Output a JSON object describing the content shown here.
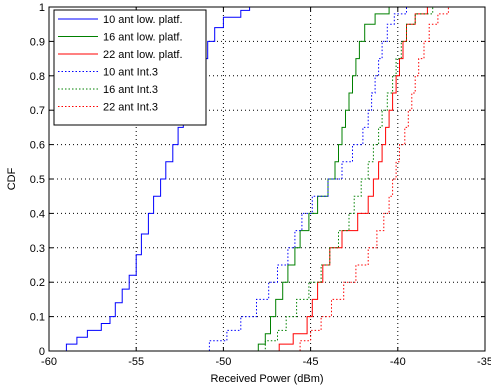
{
  "chart_data": {
    "type": "line",
    "xlabel": "Received Power (dBm)",
    "ylabel": "CDF",
    "xlim": [
      -60,
      -35
    ],
    "ylim": [
      0,
      1
    ],
    "xticks": [
      -60,
      -55,
      -50,
      -45,
      -40,
      -35
    ],
    "xtick_labels": [
      "-60",
      "-55",
      "-50",
      "-45",
      "-40",
      "-35"
    ],
    "yticks": [
      0,
      0.1,
      0.2,
      0.3,
      0.4,
      0.5,
      0.6,
      0.7,
      0.8,
      0.9,
      1
    ],
    "ytick_labels": [
      "0",
      "0.1",
      "0.2",
      "0.3",
      "0.4",
      "0.5",
      "0.6",
      "0.7",
      "0.8",
      "0.9",
      "1"
    ],
    "grid": true,
    "legend_position": "top-left",
    "series": [
      {
        "name": "10 ant low. platf.",
        "color": "#0000ff",
        "style": "solid",
        "points": [
          [
            -59.3,
            0
          ],
          [
            -59.0,
            0.02
          ],
          [
            -58.4,
            0.04
          ],
          [
            -57.8,
            0.06
          ],
          [
            -57.0,
            0.08
          ],
          [
            -56.5,
            0.1
          ],
          [
            -56.2,
            0.14
          ],
          [
            -55.8,
            0.18
          ],
          [
            -55.4,
            0.22
          ],
          [
            -55.0,
            0.28
          ],
          [
            -54.7,
            0.34
          ],
          [
            -54.3,
            0.4
          ],
          [
            -54.0,
            0.45
          ],
          [
            -53.6,
            0.5
          ],
          [
            -53.3,
            0.55
          ],
          [
            -52.9,
            0.6
          ],
          [
            -52.6,
            0.65
          ],
          [
            -52.3,
            0.7
          ],
          [
            -52.0,
            0.75
          ],
          [
            -51.7,
            0.8
          ],
          [
            -51.3,
            0.85
          ],
          [
            -50.9,
            0.9
          ],
          [
            -50.5,
            0.94
          ],
          [
            -50.0,
            0.97
          ],
          [
            -49.0,
            0.99
          ],
          [
            -48.5,
            1.0
          ]
        ]
      },
      {
        "name": "16 ant low. platf.",
        "color": "#008000",
        "style": "solid",
        "points": [
          [
            -48.5,
            0
          ],
          [
            -48.0,
            0.02
          ],
          [
            -47.6,
            0.05
          ],
          [
            -47.3,
            0.1
          ],
          [
            -47.0,
            0.15
          ],
          [
            -46.6,
            0.2
          ],
          [
            -46.3,
            0.25
          ],
          [
            -45.9,
            0.3
          ],
          [
            -45.6,
            0.35
          ],
          [
            -45.1,
            0.4
          ],
          [
            -44.6,
            0.45
          ],
          [
            -44.0,
            0.5
          ],
          [
            -43.6,
            0.55
          ],
          [
            -43.4,
            0.6
          ],
          [
            -43.2,
            0.65
          ],
          [
            -43.0,
            0.7
          ],
          [
            -42.8,
            0.75
          ],
          [
            -42.6,
            0.8
          ],
          [
            -42.4,
            0.85
          ],
          [
            -42.2,
            0.9
          ],
          [
            -41.9,
            0.95
          ],
          [
            -41.3,
            0.98
          ],
          [
            -40.5,
            1.0
          ]
        ]
      },
      {
        "name": "22 ant low. platf.",
        "color": "#ff0000",
        "style": "solid",
        "points": [
          [
            -47.5,
            0
          ],
          [
            -46.8,
            0.02
          ],
          [
            -46.0,
            0.05
          ],
          [
            -45.2,
            0.1
          ],
          [
            -44.9,
            0.15
          ],
          [
            -44.6,
            0.2
          ],
          [
            -44.3,
            0.25
          ],
          [
            -43.9,
            0.3
          ],
          [
            -43.2,
            0.35
          ],
          [
            -42.3,
            0.4
          ],
          [
            -41.7,
            0.45
          ],
          [
            -41.4,
            0.5
          ],
          [
            -41.1,
            0.55
          ],
          [
            -40.9,
            0.6
          ],
          [
            -40.7,
            0.65
          ],
          [
            -40.5,
            0.7
          ],
          [
            -40.3,
            0.75
          ],
          [
            -40.1,
            0.8
          ],
          [
            -39.9,
            0.85
          ],
          [
            -39.7,
            0.9
          ],
          [
            -39.5,
            0.95
          ],
          [
            -39.0,
            0.98
          ],
          [
            -38.3,
            1.0
          ]
        ]
      },
      {
        "name": "10 ant Int.3",
        "color": "#0000ff",
        "style": "dotted",
        "points": [
          [
            -51.8,
            0
          ],
          [
            -50.8,
            0.03
          ],
          [
            -49.8,
            0.06
          ],
          [
            -49.0,
            0.1
          ],
          [
            -48.1,
            0.15
          ],
          [
            -47.4,
            0.2
          ],
          [
            -46.9,
            0.25
          ],
          [
            -46.3,
            0.3
          ],
          [
            -45.9,
            0.35
          ],
          [
            -45.5,
            0.4
          ],
          [
            -44.9,
            0.45
          ],
          [
            -44.0,
            0.5
          ],
          [
            -43.2,
            0.55
          ],
          [
            -42.6,
            0.6
          ],
          [
            -42.0,
            0.65
          ],
          [
            -41.7,
            0.7
          ],
          [
            -41.5,
            0.75
          ],
          [
            -41.3,
            0.8
          ],
          [
            -41.1,
            0.85
          ],
          [
            -40.9,
            0.9
          ],
          [
            -40.6,
            0.95
          ],
          [
            -40.2,
            0.98
          ],
          [
            -39.5,
            1.0
          ]
        ]
      },
      {
        "name": "16 ant Int.3",
        "color": "#008000",
        "style": "dotted",
        "points": [
          [
            -48.7,
            0
          ],
          [
            -47.6,
            0.03
          ],
          [
            -46.9,
            0.06
          ],
          [
            -46.4,
            0.1
          ],
          [
            -45.8,
            0.15
          ],
          [
            -45.1,
            0.2
          ],
          [
            -44.4,
            0.25
          ],
          [
            -43.9,
            0.3
          ],
          [
            -43.4,
            0.35
          ],
          [
            -42.8,
            0.4
          ],
          [
            -42.5,
            0.45
          ],
          [
            -42.1,
            0.5
          ],
          [
            -41.7,
            0.55
          ],
          [
            -41.4,
            0.6
          ],
          [
            -41.1,
            0.65
          ],
          [
            -40.9,
            0.7
          ],
          [
            -40.6,
            0.75
          ],
          [
            -40.3,
            0.8
          ],
          [
            -40.1,
            0.85
          ],
          [
            -39.8,
            0.9
          ],
          [
            -39.5,
            0.95
          ],
          [
            -39.0,
            0.98
          ],
          [
            -38.0,
            1.0
          ]
        ]
      },
      {
        "name": "22 ant Int.3",
        "color": "#ff0000",
        "style": "dotted",
        "points": [
          [
            -46.2,
            0
          ],
          [
            -45.6,
            0.03
          ],
          [
            -45.0,
            0.06
          ],
          [
            -44.4,
            0.1
          ],
          [
            -43.8,
            0.15
          ],
          [
            -43.1,
            0.2
          ],
          [
            -42.4,
            0.25
          ],
          [
            -41.7,
            0.3
          ],
          [
            -41.2,
            0.35
          ],
          [
            -40.8,
            0.4
          ],
          [
            -40.5,
            0.45
          ],
          [
            -40.3,
            0.5
          ],
          [
            -40.1,
            0.55
          ],
          [
            -39.9,
            0.6
          ],
          [
            -39.6,
            0.65
          ],
          [
            -39.4,
            0.7
          ],
          [
            -39.2,
            0.75
          ],
          [
            -39.0,
            0.8
          ],
          [
            -38.8,
            0.85
          ],
          [
            -38.5,
            0.9
          ],
          [
            -38.2,
            0.95
          ],
          [
            -37.7,
            0.98
          ],
          [
            -37.1,
            1.0
          ]
        ]
      }
    ]
  }
}
